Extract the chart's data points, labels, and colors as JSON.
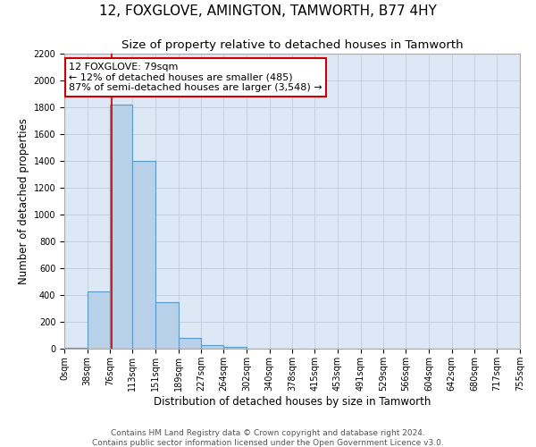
{
  "title": "12, FOXGLOVE, AMINGTON, TAMWORTH, B77 4HY",
  "subtitle": "Size of property relative to detached houses in Tamworth",
  "xlabel": "Distribution of detached houses by size in Tamworth",
  "ylabel": "Number of detached properties",
  "bin_edges": [
    0,
    38,
    76,
    113,
    151,
    189,
    227,
    264,
    302,
    340,
    378,
    415,
    453,
    491,
    529,
    566,
    604,
    642,
    680,
    717,
    755
  ],
  "bin_counts": [
    5,
    430,
    1820,
    1400,
    350,
    80,
    30,
    15,
    3,
    1,
    0,
    0,
    0,
    0,
    0,
    0,
    0,
    0,
    0,
    0
  ],
  "bar_color": "#b8d0e8",
  "bar_edgecolor": "#5a9ac8",
  "property_value": 79,
  "property_line_color": "#cc0000",
  "annotation_line1": "12 FOXGLOVE: 79sqm",
  "annotation_line2": "← 12% of detached houses are smaller (485)",
  "annotation_line3": "87% of semi-detached houses are larger (3,548) →",
  "annotation_box_edgecolor": "#cc0000",
  "annotation_box_facecolor": "#ffffff",
  "ylim": [
    0,
    2200
  ],
  "yticks": [
    0,
    200,
    400,
    600,
    800,
    1000,
    1200,
    1400,
    1600,
    1800,
    2000,
    2200
  ],
  "xtick_labels": [
    "0sqm",
    "38sqm",
    "76sqm",
    "113sqm",
    "151sqm",
    "189sqm",
    "227sqm",
    "264sqm",
    "302sqm",
    "340sqm",
    "378sqm",
    "415sqm",
    "453sqm",
    "491sqm",
    "529sqm",
    "566sqm",
    "604sqm",
    "642sqm",
    "680sqm",
    "717sqm",
    "755sqm"
  ],
  "footer_line1": "Contains HM Land Registry data © Crown copyright and database right 2024.",
  "footer_line2": "Contains public sector information licensed under the Open Government Licence v3.0.",
  "background_color": "#ffffff",
  "plot_bg_color": "#dce8f5",
  "grid_color": "#c0ccd8",
  "title_fontsize": 11,
  "subtitle_fontsize": 9.5,
  "axis_label_fontsize": 8.5,
  "tick_fontsize": 7,
  "annotation_fontsize": 8,
  "footer_fontsize": 6.5
}
